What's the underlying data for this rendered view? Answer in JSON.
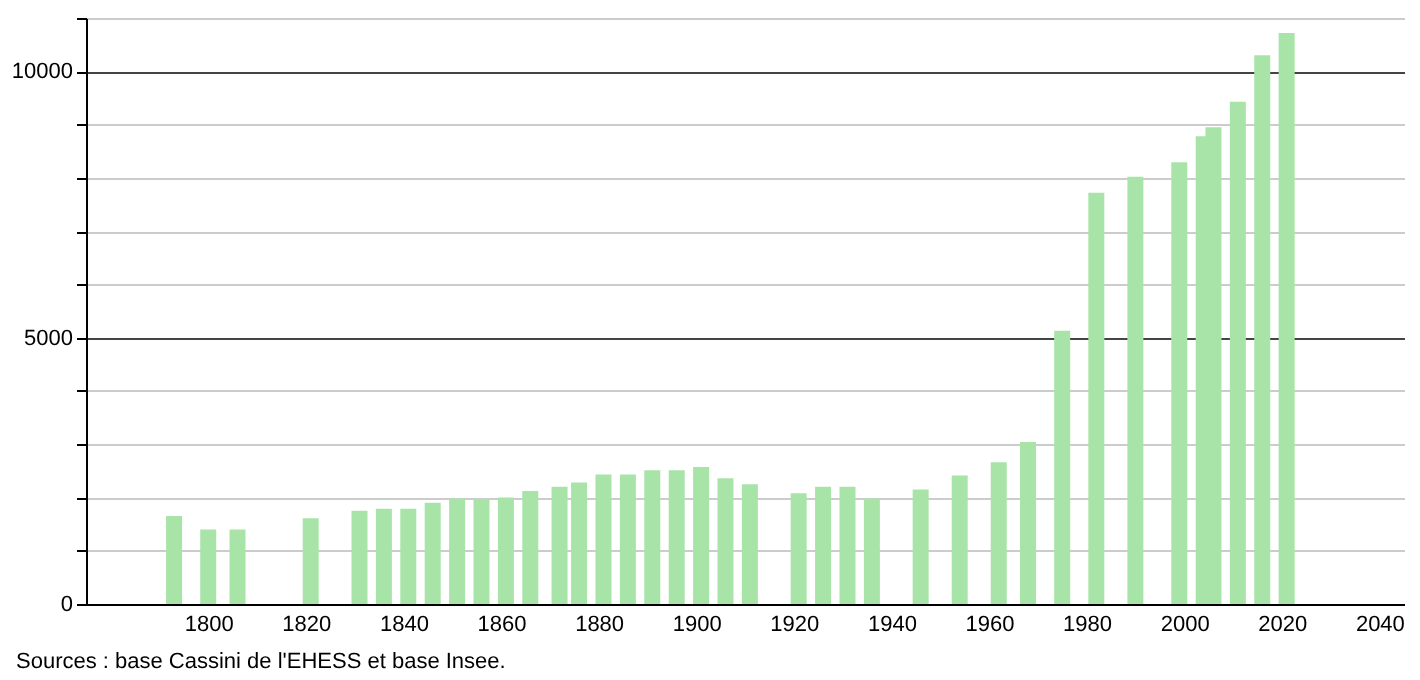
{
  "chart_data": {
    "type": "bar",
    "color": "#a8e4a8",
    "x": [
      1793,
      1800,
      1806,
      1821,
      1831,
      1836,
      1841,
      1846,
      1851,
      1856,
      1861,
      1866,
      1872,
      1876,
      1881,
      1886,
      1891,
      1896,
      1901,
      1906,
      1911,
      1921,
      1926,
      1931,
      1936,
      1946,
      1954,
      1962,
      1968,
      1975,
      1982,
      1990,
      1999,
      2004,
      2006,
      2011,
      2016,
      2021
    ],
    "values": [
      1650,
      1400,
      1400,
      1610,
      1750,
      1790,
      1790,
      1900,
      1980,
      1960,
      2000,
      2120,
      2200,
      2280,
      2430,
      2430,
      2510,
      2510,
      2570,
      2360,
      2250,
      2080,
      2200,
      2200,
      1980,
      2150,
      2410,
      2660,
      3040,
      5130,
      7720,
      8020,
      8290,
      8780,
      8950,
      9430,
      10300,
      10720
    ],
    "xlim": [
      1777,
      2043
    ],
    "xticks": [
      1800,
      1820,
      1840,
      1860,
      1880,
      1900,
      1920,
      1940,
      1960,
      1980,
      2000,
      2020,
      2040
    ],
    "ylim": [
      0,
      11000
    ],
    "yticks": [
      0,
      {
        "value": 1000,
        "label": null
      },
      {
        "value": 2000,
        "label": null
      },
      {
        "value": 3000,
        "label": null
      },
      {
        "value": 4000,
        "label": null
      },
      5000,
      {
        "value": 6000,
        "label": null
      },
      {
        "value": 7000,
        "label": null
      },
      {
        "value": 8000,
        "label": null
      },
      {
        "value": 9000,
        "label": null
      },
      10000,
      {
        "value": 11000,
        "label": null
      }
    ],
    "grid": "y",
    "annotations": [
      "Sources : base Cassini de l'EHESS et base Insee."
    ]
  }
}
